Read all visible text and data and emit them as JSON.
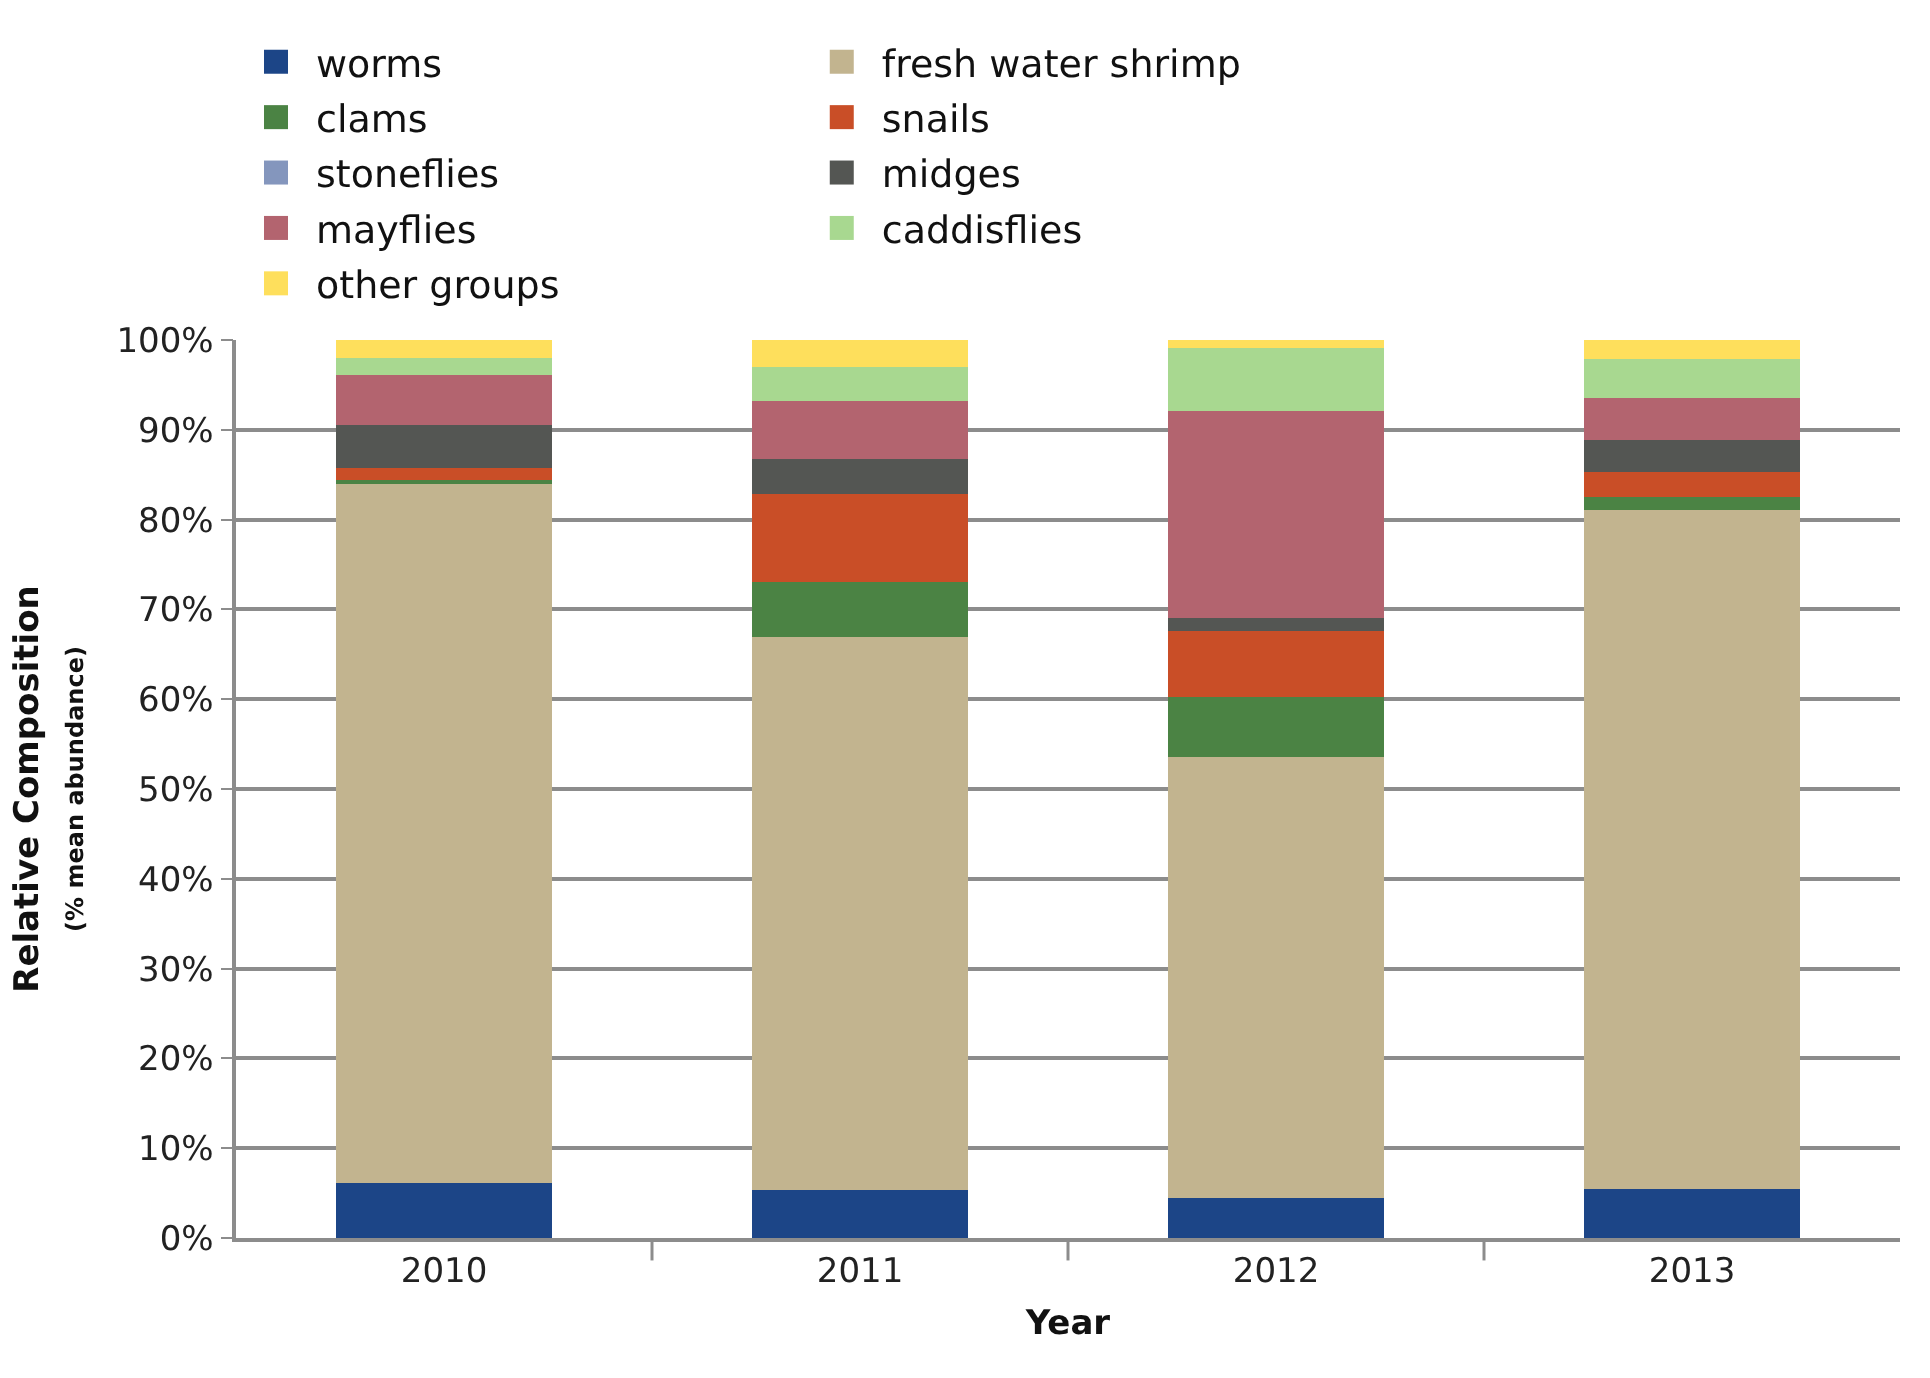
{
  "chart_data": {
    "type": "bar",
    "stacked": true,
    "xlabel": "Year",
    "ylabel": "Relative Composition\n(% mean abundance)",
    "categories": [
      "2010",
      "2011",
      "2012",
      "2013"
    ],
    "series": [
      {
        "name": "worms",
        "color": "#1c4587",
        "values": [
          6.1,
          5.3,
          4.4,
          5.5
        ]
      },
      {
        "name": "fresh water shrimp",
        "color": "#c2b48f",
        "values": [
          77.9,
          61.6,
          49.2,
          75.6
        ]
      },
      {
        "name": "clams",
        "color": "#4b8344",
        "values": [
          0.4,
          6.1,
          6.7,
          1.4
        ]
      },
      {
        "name": "snails",
        "color": "#c94e27",
        "values": [
          1.4,
          9.9,
          7.3,
          2.8
        ]
      },
      {
        "name": "stoneflies",
        "color": "#8496bd",
        "values": [
          0,
          0,
          0,
          0
        ]
      },
      {
        "name": "midges",
        "color": "#545653",
        "values": [
          4.7,
          3.8,
          1.4,
          3.6
        ]
      },
      {
        "name": "mayflies",
        "color": "#b3646f",
        "values": [
          5.6,
          6.5,
          23.1,
          4.6
        ]
      },
      {
        "name": "caddisflies",
        "color": "#a8d890",
        "values": [
          1.9,
          3.8,
          7.0,
          4.4
        ]
      },
      {
        "name": "other groups",
        "color": "#fedf5c",
        "values": [
          2.0,
          3.0,
          0.9,
          2.1
        ]
      }
    ],
    "ylim": [
      0,
      100
    ],
    "yticks": [
      {
        "value": 0,
        "label": "0%"
      },
      {
        "value": 10,
        "label": "10%"
      },
      {
        "value": 20,
        "label": "20%"
      },
      {
        "value": 30,
        "label": "30%"
      },
      {
        "value": 40,
        "label": "40%"
      },
      {
        "value": 50,
        "label": "50%"
      },
      {
        "value": 60,
        "label": "60%"
      },
      {
        "value": 70,
        "label": "70%"
      },
      {
        "value": 80,
        "label": "80%"
      },
      {
        "value": 90,
        "label": "90%"
      },
      {
        "value": 100,
        "label": "100%"
      }
    ],
    "grid": "y",
    "legend": "top"
  }
}
